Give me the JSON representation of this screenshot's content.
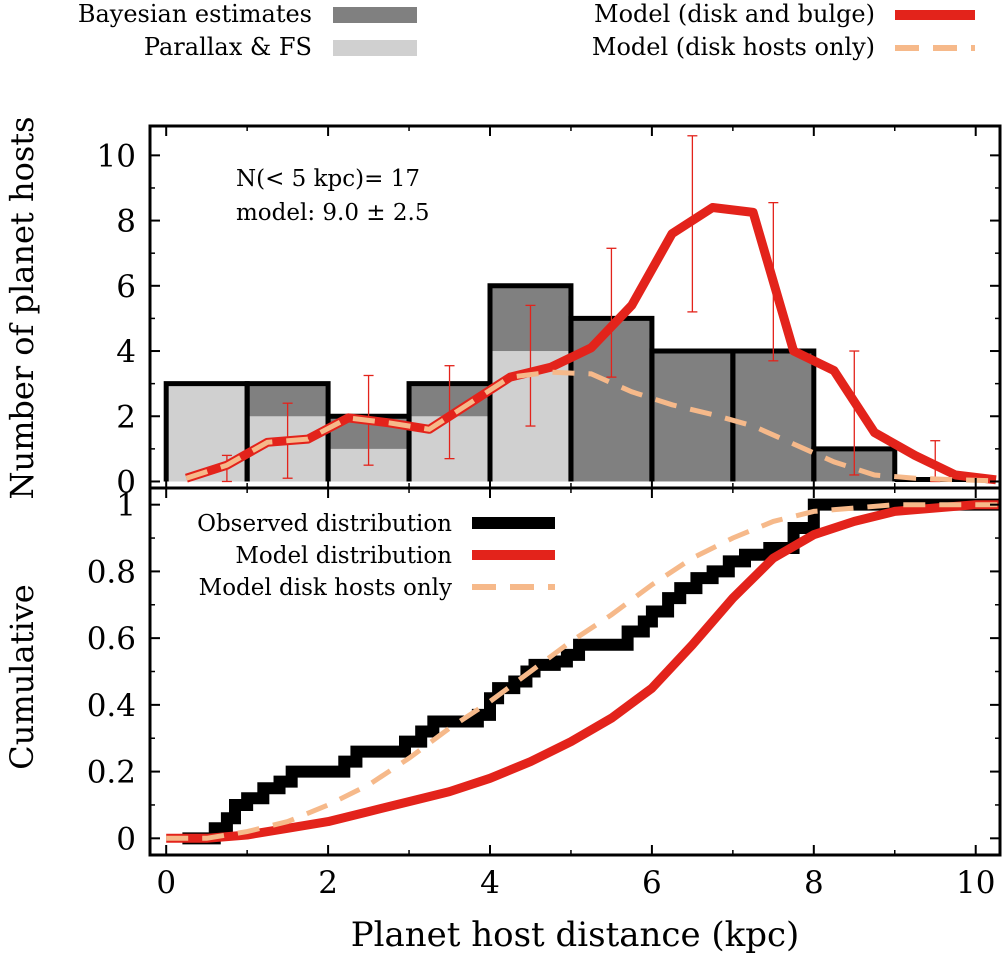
{
  "legend_top": {
    "bayes_label": "Bayesian estimates",
    "parallax_label": "Parallax & FS",
    "model_full_label": "Model (disk and bulge)",
    "model_disk_label": "Model (disk hosts only)"
  },
  "annotation": {
    "line1": "N(< 5 kpc)= 17",
    "line2": "model: 9.0 ± 2.5"
  },
  "axes": {
    "xlabel": "Planet host distance (kpc)",
    "ylabel_top": "Number of planet hosts",
    "ylabel_bottom": "Cumulative",
    "xticks": [
      "0",
      "2",
      "4",
      "6",
      "8",
      "10"
    ],
    "yticks_top": [
      "0",
      "2",
      "4",
      "6",
      "8",
      "10"
    ],
    "yticks_bottom": [
      "0",
      "0.2",
      "0.4",
      "0.6",
      "0.8",
      "1"
    ]
  },
  "legend_bottom": {
    "observed_label": "Observed distribution",
    "model_label": "Model distribution",
    "disk_label": "Model disk hosts only"
  },
  "colors": {
    "bayes": "#808080",
    "parallax": "#d0d0d0",
    "model": "#e3231b",
    "disk": "#f6b98a",
    "observed": "#000000"
  },
  "chart_data": [
    {
      "type": "bar",
      "panel": "histogram",
      "xlim": [
        -0.2,
        10.3
      ],
      "ylim": [
        -0.2,
        10.9
      ],
      "bin_edges": [
        0,
        1,
        2,
        3,
        4,
        5,
        6,
        7,
        8,
        9,
        10
      ],
      "series": [
        {
          "name": "Bayesian estimates",
          "values": [
            3,
            3,
            2,
            3,
            6,
            5,
            4,
            4,
            1,
            0
          ]
        },
        {
          "name": "Parallax & FS",
          "values": [
            3,
            2,
            1,
            2,
            4,
            0,
            0,
            0,
            0,
            0
          ]
        }
      ],
      "model_full": {
        "name": "Model (disk and bulge)",
        "x": [
          0.25,
          0.75,
          1.25,
          1.75,
          2.25,
          2.75,
          3.25,
          3.75,
          4.25,
          4.75,
          5.25,
          5.75,
          6.25,
          6.75,
          7.25,
          7.75,
          8.25,
          8.75,
          9.25,
          9.75,
          10.25
        ],
        "y": [
          0.1,
          0.5,
          1.2,
          1.3,
          1.95,
          1.8,
          1.6,
          2.4,
          3.2,
          3.5,
          4.1,
          5.4,
          7.6,
          8.4,
          8.25,
          4.0,
          3.4,
          1.5,
          0.8,
          0.2,
          0.05
        ],
        "err_x": [
          0.75,
          1.5,
          2.5,
          3.5,
          4.5,
          5.5,
          6.5,
          7.5,
          8.5,
          9.5
        ],
        "err_low": [
          0,
          0.1,
          0.5,
          0.7,
          1.7,
          3.2,
          5.2,
          3.7,
          0.2,
          0
        ],
        "err_high": [
          0.8,
          2.4,
          3.25,
          3.55,
          5.4,
          7.15,
          10.6,
          8.55,
          4.0,
          1.25
        ]
      },
      "model_disk": {
        "name": "Model (disk hosts only)",
        "x": [
          0.25,
          0.75,
          1.25,
          1.75,
          2.25,
          2.75,
          3.25,
          3.75,
          4.25,
          4.75,
          5.25,
          5.75,
          6.25,
          6.75,
          7.25,
          7.75,
          8.25,
          8.75,
          9.25,
          9.75,
          10.25
        ],
        "y": [
          0.1,
          0.5,
          1.2,
          1.3,
          1.95,
          1.8,
          1.6,
          2.4,
          3.2,
          3.35,
          3.3,
          2.75,
          2.35,
          2.05,
          1.7,
          1.15,
          0.6,
          0.2,
          0.1,
          0.05,
          0.02
        ]
      }
    },
    {
      "type": "line",
      "panel": "cumulative",
      "xlim": [
        -0.2,
        10.3
      ],
      "ylim": [
        -0.05,
        1.05
      ],
      "observed": {
        "name": "Observed distribution",
        "x": [
          0.5,
          0.6,
          0.75,
          0.85,
          1.0,
          1.2,
          1.4,
          1.55,
          1.75,
          2.2,
          2.35,
          2.55,
          2.95,
          3.15,
          3.3,
          3.45,
          3.85,
          4.0,
          4.1,
          4.3,
          4.45,
          4.55,
          4.8,
          4.95,
          5.1,
          5.5,
          5.7,
          5.9,
          6.0,
          6.2,
          6.35,
          6.55,
          6.75,
          6.95,
          7.15,
          7.45,
          7.75,
          8.0
        ],
        "y": [
          0,
          0.03,
          0.06,
          0.1,
          0.12,
          0.15,
          0.17,
          0.2,
          0.2,
          0.23,
          0.26,
          0.26,
          0.29,
          0.32,
          0.35,
          0.35,
          0.37,
          0.42,
          0.45,
          0.47,
          0.5,
          0.52,
          0.53,
          0.55,
          0.58,
          0.58,
          0.62,
          0.65,
          0.68,
          0.72,
          0.75,
          0.78,
          0.8,
          0.83,
          0.85,
          0.87,
          0.93,
          1.0
        ]
      },
      "model": {
        "name": "Model distribution",
        "x": [
          0,
          0.5,
          1,
          1.5,
          2,
          2.5,
          3,
          3.5,
          4,
          4.5,
          5,
          5.5,
          6,
          6.5,
          7,
          7.5,
          8,
          8.5,
          9,
          9.5,
          10,
          10.3
        ],
        "y": [
          0,
          0.0,
          0.01,
          0.03,
          0.05,
          0.08,
          0.11,
          0.14,
          0.18,
          0.23,
          0.29,
          0.36,
          0.45,
          0.58,
          0.72,
          0.84,
          0.91,
          0.95,
          0.98,
          0.99,
          1.0,
          1.0
        ]
      },
      "disk": {
        "name": "Model disk hosts only",
        "x": [
          0,
          0.5,
          1,
          1.5,
          2,
          2.5,
          3,
          3.5,
          4,
          4.5,
          5,
          5.5,
          6,
          6.5,
          7,
          7.5,
          8,
          8.5,
          9,
          9.5,
          10,
          10.3
        ],
        "y": [
          0,
          0.0,
          0.02,
          0.05,
          0.1,
          0.16,
          0.24,
          0.33,
          0.41,
          0.5,
          0.59,
          0.67,
          0.76,
          0.84,
          0.9,
          0.95,
          0.98,
          0.99,
          1.0,
          1.0,
          1.0,
          1.0
        ]
      }
    }
  ]
}
